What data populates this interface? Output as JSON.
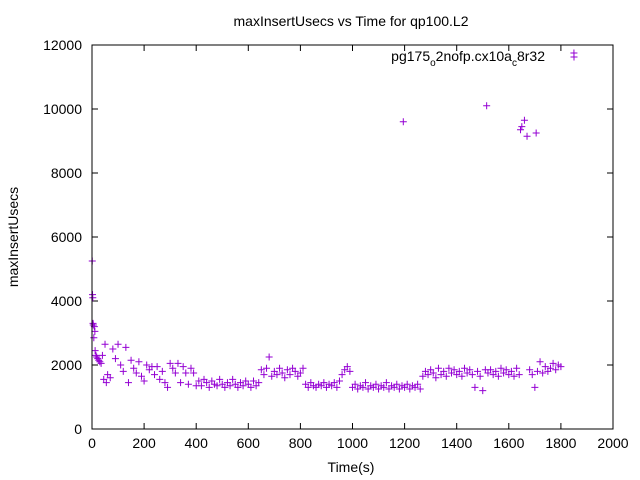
{
  "chart_data": {
    "type": "scatter",
    "title": "maxInsertUsecs vs Time for qp100.L2",
    "xlabel": "Time(s)",
    "ylabel": "maxInsertUsecs",
    "xlim": [
      0,
      2000
    ],
    "ylim": [
      0,
      12000
    ],
    "x_ticks": [
      "0",
      "200",
      "400",
      "600",
      "800",
      "1000",
      "1200",
      "1400",
      "1600",
      "1800",
      "2000"
    ],
    "y_ticks": [
      "0",
      "2000",
      "4000",
      "6000",
      "8000",
      "10000",
      "12000"
    ],
    "grid": false,
    "legend_position": "top-right",
    "marker": "plus",
    "series": [
      {
        "name_parts": [
          "pg175",
          "o",
          "2nofp.cx10a",
          "c",
          "8r32"
        ],
        "color": "#9400d3",
        "points": [
          [
            1,
            5250
          ],
          [
            2,
            4200
          ],
          [
            3,
            4100
          ],
          [
            4,
            3300
          ],
          [
            5,
            3250
          ],
          [
            7,
            2850
          ],
          [
            9,
            3200
          ],
          [
            11,
            3050
          ],
          [
            12,
            2450
          ],
          [
            15,
            2300
          ],
          [
            18,
            2250
          ],
          [
            22,
            2200
          ],
          [
            26,
            2150
          ],
          [
            30,
            2100
          ],
          [
            35,
            2050
          ],
          [
            40,
            2300
          ],
          [
            45,
            1550
          ],
          [
            50,
            2650
          ],
          [
            55,
            1450
          ],
          [
            60,
            1700
          ],
          [
            70,
            1600
          ],
          [
            80,
            2500
          ],
          [
            90,
            2200
          ],
          [
            100,
            2650
          ],
          [
            110,
            2000
          ],
          [
            120,
            1800
          ],
          [
            130,
            2550
          ],
          [
            140,
            1450
          ],
          [
            150,
            2150
          ],
          [
            160,
            1900
          ],
          [
            170,
            1750
          ],
          [
            180,
            2100
          ],
          [
            190,
            1650
          ],
          [
            200,
            1500
          ],
          [
            210,
            2000
          ],
          [
            220,
            1850
          ],
          [
            230,
            1950
          ],
          [
            240,
            1700
          ],
          [
            250,
            1950
          ],
          [
            260,
            1550
          ],
          [
            270,
            1800
          ],
          [
            280,
            1450
          ],
          [
            290,
            1300
          ],
          [
            300,
            2050
          ],
          [
            310,
            1900
          ],
          [
            320,
            1750
          ],
          [
            330,
            2050
          ],
          [
            340,
            1450
          ],
          [
            350,
            1950
          ],
          [
            360,
            1750
          ],
          [
            370,
            1400
          ],
          [
            380,
            1900
          ],
          [
            390,
            1750
          ],
          [
            400,
            1350
          ],
          [
            410,
            1500
          ],
          [
            420,
            1350
          ],
          [
            430,
            1550
          ],
          [
            440,
            1450
          ],
          [
            450,
            1300
          ],
          [
            460,
            1500
          ],
          [
            470,
            1400
          ],
          [
            480,
            1350
          ],
          [
            490,
            1550
          ],
          [
            500,
            1400
          ],
          [
            510,
            1300
          ],
          [
            520,
            1450
          ],
          [
            530,
            1350
          ],
          [
            540,
            1550
          ],
          [
            550,
            1400
          ],
          [
            560,
            1300
          ],
          [
            570,
            1450
          ],
          [
            580,
            1350
          ],
          [
            590,
            1500
          ],
          [
            600,
            1400
          ],
          [
            610,
            1300
          ],
          [
            620,
            1500
          ],
          [
            630,
            1350
          ],
          [
            640,
            1450
          ],
          [
            650,
            1850
          ],
          [
            660,
            1700
          ],
          [
            670,
            1900
          ],
          [
            680,
            2250
          ],
          [
            690,
            1650
          ],
          [
            700,
            1800
          ],
          [
            710,
            1700
          ],
          [
            720,
            1900
          ],
          [
            730,
            1750
          ],
          [
            740,
            1600
          ],
          [
            750,
            1850
          ],
          [
            760,
            1700
          ],
          [
            770,
            1900
          ],
          [
            780,
            1800
          ],
          [
            790,
            1650
          ],
          [
            800,
            1750
          ],
          [
            810,
            1900
          ],
          [
            820,
            1400
          ],
          [
            830,
            1300
          ],
          [
            840,
            1450
          ],
          [
            850,
            1350
          ],
          [
            860,
            1300
          ],
          [
            870,
            1400
          ],
          [
            880,
            1350
          ],
          [
            890,
            1450
          ],
          [
            900,
            1300
          ],
          [
            910,
            1400
          ],
          [
            920,
            1350
          ],
          [
            930,
            1450
          ],
          [
            940,
            1300
          ],
          [
            950,
            1500
          ],
          [
            960,
            1700
          ],
          [
            970,
            1850
          ],
          [
            980,
            1950
          ],
          [
            990,
            1800
          ],
          [
            1000,
            1300
          ],
          [
            1010,
            1400
          ],
          [
            1020,
            1250
          ],
          [
            1030,
            1350
          ],
          [
            1040,
            1300
          ],
          [
            1050,
            1450
          ],
          [
            1060,
            1250
          ],
          [
            1070,
            1350
          ],
          [
            1080,
            1300
          ],
          [
            1090,
            1400
          ],
          [
            1100,
            1250
          ],
          [
            1110,
            1350
          ],
          [
            1120,
            1300
          ],
          [
            1130,
            1450
          ],
          [
            1140,
            1250
          ],
          [
            1150,
            1350
          ],
          [
            1160,
            1300
          ],
          [
            1170,
            1400
          ],
          [
            1180,
            1250
          ],
          [
            1190,
            1350
          ],
          [
            1195,
            9600
          ],
          [
            1200,
            1300
          ],
          [
            1210,
            1400
          ],
          [
            1220,
            1250
          ],
          [
            1230,
            1350
          ],
          [
            1240,
            1300
          ],
          [
            1250,
            1400
          ],
          [
            1260,
            1250
          ],
          [
            1270,
            1650
          ],
          [
            1280,
            1800
          ],
          [
            1290,
            1700
          ],
          [
            1300,
            1850
          ],
          [
            1310,
            1750
          ],
          [
            1320,
            1600
          ],
          [
            1330,
            1900
          ],
          [
            1340,
            1700
          ],
          [
            1350,
            1800
          ],
          [
            1360,
            1650
          ],
          [
            1370,
            1900
          ],
          [
            1380,
            1750
          ],
          [
            1390,
            1850
          ],
          [
            1400,
            1700
          ],
          [
            1410,
            1800
          ],
          [
            1420,
            1650
          ],
          [
            1430,
            1900
          ],
          [
            1440,
            1750
          ],
          [
            1450,
            1850
          ],
          [
            1460,
            1700
          ],
          [
            1470,
            1300
          ],
          [
            1480,
            1800
          ],
          [
            1490,
            1650
          ],
          [
            1500,
            1200
          ],
          [
            1510,
            1850
          ],
          [
            1515,
            10100
          ],
          [
            1520,
            1750
          ],
          [
            1530,
            1850
          ],
          [
            1540,
            1700
          ],
          [
            1550,
            1800
          ],
          [
            1560,
            1650
          ],
          [
            1570,
            1900
          ],
          [
            1580,
            1750
          ],
          [
            1590,
            1850
          ],
          [
            1600,
            1700
          ],
          [
            1610,
            1800
          ],
          [
            1620,
            1650
          ],
          [
            1630,
            1900
          ],
          [
            1640,
            1700
          ],
          [
            1645,
            9350
          ],
          [
            1650,
            9450
          ],
          [
            1660,
            9650
          ],
          [
            1670,
            9150
          ],
          [
            1680,
            1850
          ],
          [
            1690,
            1700
          ],
          [
            1700,
            1300
          ],
          [
            1705,
            9250
          ],
          [
            1710,
            1800
          ],
          [
            1720,
            2100
          ],
          [
            1730,
            1750
          ],
          [
            1740,
            1950
          ],
          [
            1750,
            1800
          ],
          [
            1760,
            1900
          ],
          [
            1770,
            2050
          ],
          [
            1780,
            1850
          ],
          [
            1790,
            2000
          ],
          [
            1800,
            1950
          ],
          [
            1850,
            11750
          ]
        ]
      }
    ]
  }
}
